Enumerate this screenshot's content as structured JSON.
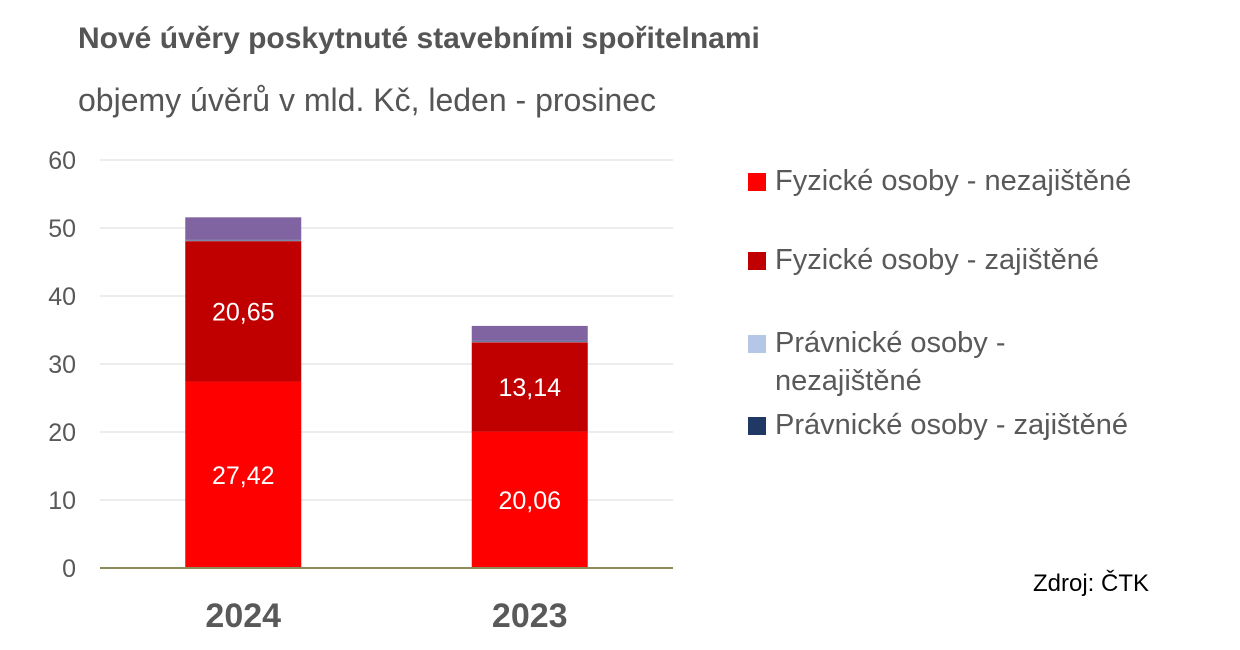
{
  "title": "Nové úvěry poskytnuté stavebními spořitelnami",
  "subtitle": "objemy úvěrů v mld. Kč, leden - prosinec",
  "source": "Zdroj: ČTK",
  "chart_data": {
    "type": "bar",
    "stacked": true,
    "categories": [
      "2024",
      "2023"
    ],
    "series": [
      {
        "name": "Fyzické osoby - nezajištěné",
        "color": "#ff0000",
        "values": [
          27.42,
          20.06
        ],
        "labels": [
          "27,42",
          "20,06"
        ]
      },
      {
        "name": "Fyzické osoby - zajištěné",
        "color": "#c00000",
        "values": [
          20.65,
          13.14
        ],
        "labels": [
          "20,65",
          "13,14"
        ]
      },
      {
        "name": "Právnické osoby - nezajištěné",
        "color": "#b4c7e7",
        "values": [
          0.1,
          0.1
        ],
        "labels": [
          "",
          ""
        ]
      },
      {
        "name": "Právnické osoby - zajištěné",
        "color": "#203864",
        "values": [
          0.1,
          0.1
        ],
        "labels": [
          "",
          ""
        ]
      },
      {
        "name": "",
        "color": "#8064a2",
        "values": [
          3.3,
          2.2
        ],
        "labels": [
          "",
          ""
        ]
      }
    ],
    "ylim": [
      0,
      60
    ],
    "yticks": [
      "0",
      "10",
      "20",
      "30",
      "40",
      "50",
      "60"
    ],
    "grid": true,
    "legend_position": "right"
  }
}
